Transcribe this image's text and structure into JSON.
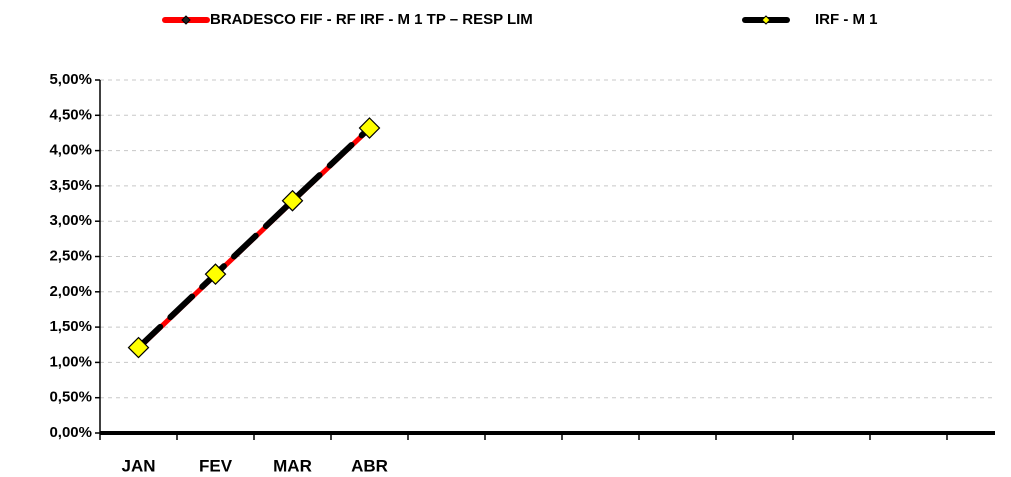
{
  "chart_data": {
    "type": "line",
    "categories": [
      "JAN",
      "FEV",
      "MAR",
      "ABR",
      null,
      null,
      null,
      null,
      null,
      null,
      null,
      null
    ],
    "series": [
      {
        "name": "BRADESCO FIF - RF IRF - M 1 TP – RESP LIM",
        "color": "#ff0000",
        "marker_color": "#222222",
        "values": [
          1.2,
          2.24,
          3.28,
          4.31,
          null,
          null,
          null,
          null,
          null,
          null,
          null,
          null
        ]
      },
      {
        "name": "IRF - M 1",
        "color": "#000000",
        "marker_color": "#ffff00",
        "values": [
          1.21,
          2.25,
          3.29,
          4.32,
          null,
          null,
          null,
          null,
          null,
          null,
          null,
          null
        ]
      }
    ],
    "ylim": [
      0,
      5
    ],
    "yticks": [
      {
        "value": 0,
        "label": "0,00%"
      },
      {
        "value": 0.5,
        "label": "0,50%"
      },
      {
        "value": 1,
        "label": "1,00%"
      },
      {
        "value": 1.5,
        "label": "1,50%"
      },
      {
        "value": 2,
        "label": "2,00%"
      },
      {
        "value": 2.5,
        "label": "2,50%"
      },
      {
        "value": 3,
        "label": "3,00%"
      },
      {
        "value": 3.5,
        "label": "3,50%"
      },
      {
        "value": 4,
        "label": "4,00%"
      },
      {
        "value": 4.5,
        "label": "4,50%"
      },
      {
        "value": 5,
        "label": "5,00%"
      }
    ],
    "grid": true,
    "legend": "top"
  }
}
